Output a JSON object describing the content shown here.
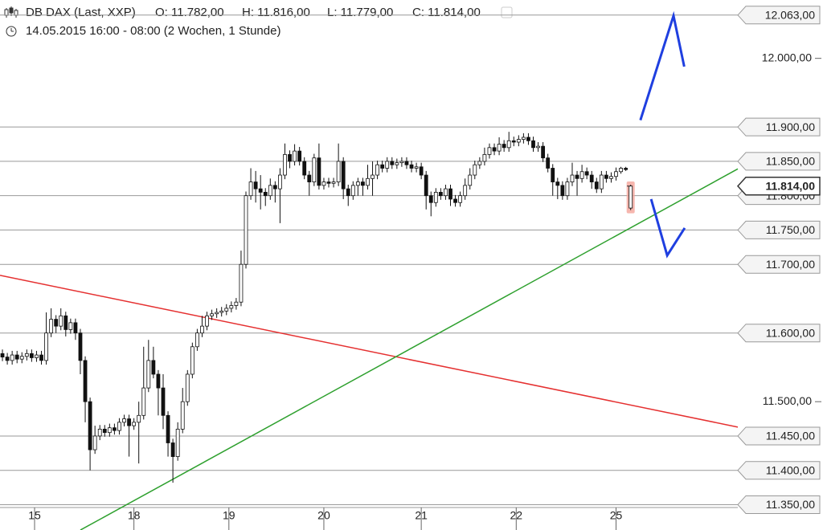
{
  "chart_data": {
    "type": "candlestick",
    "title": "DB DAX (Last, XXP)",
    "quote": [
      "O: 11.782,00",
      "H: 11.816,00",
      "L: 11.779,00",
      "C: 11.814,00"
    ],
    "subtitle": "14.05.2015 16:00 - 08:00 (2 Wochen, 1 Stunde)",
    "xlim": [
      -0.5,
      151
    ],
    "ylim": [
      11340,
      12085
    ],
    "xticks": [
      {
        "value": 6.6,
        "label": "15"
      },
      {
        "value": 27,
        "label": "18"
      },
      {
        "value": 46.5,
        "label": "19"
      },
      {
        "value": 66,
        "label": "20"
      },
      {
        "value": 86,
        "label": "21"
      },
      {
        "value": 105.5,
        "label": "22"
      },
      {
        "value": 126,
        "label": "25"
      }
    ],
    "yticks": [
      {
        "value": 12000,
        "label": "12.000,00"
      },
      {
        "value": 11500,
        "label": "11.500,00"
      }
    ],
    "price_lines": [
      {
        "value": 12063,
        "label": "12.063,00"
      },
      {
        "value": 11900,
        "label": "11.900,00"
      },
      {
        "value": 11850,
        "label": "11.850,00"
      },
      {
        "value": 11800,
        "label": "11.800,00"
      },
      {
        "value": 11750,
        "label": "11.750,00"
      },
      {
        "value": 11700,
        "label": "11.700,00"
      },
      {
        "value": 11600,
        "label": "11.600,00"
      },
      {
        "value": 11450,
        "label": "11.450,00"
      },
      {
        "value": 11400,
        "label": "11.400,00"
      },
      {
        "value": 11350,
        "label": "11.350,00"
      }
    ],
    "last_price": {
      "value": 11814,
      "label": "11.814,00"
    },
    "trendlines": [
      {
        "color": "#e53030",
        "points": [
          [
            -0.5,
            11684
          ],
          [
            151,
            11463
          ]
        ]
      },
      {
        "color": "#2ea02e",
        "points": [
          [
            16,
            11313
          ],
          [
            151,
            11839
          ]
        ]
      },
      {
        "color": "#1f3fe0",
        "points": [
          [
            131,
            11910
          ],
          [
            137.8,
            12062
          ],
          [
            140,
            11988
          ]
        ]
      },
      {
        "color": "#1f3fe0",
        "points": [
          [
            133.2,
            11795
          ],
          [
            136.5,
            11713
          ],
          [
            140.1,
            11753
          ]
        ]
      }
    ],
    "ohlc": [
      [
        11570,
        11576,
        11559,
        11565
      ],
      [
        11565,
        11571,
        11554,
        11560
      ],
      [
        11560,
        11574,
        11554,
        11568
      ],
      [
        11568,
        11574,
        11556,
        11562
      ],
      [
        11562,
        11572,
        11556,
        11566
      ],
      [
        11566,
        11576,
        11560,
        11570
      ],
      [
        11570,
        11576,
        11558,
        11564
      ],
      [
        11564,
        11574,
        11558,
        11568
      ],
      [
        11568,
        11574,
        11554,
        11560
      ],
      [
        11560,
        11630,
        11554,
        11600
      ],
      [
        11600,
        11636,
        11594,
        11620
      ],
      [
        11620,
        11626,
        11600,
        11610
      ],
      [
        11610,
        11636,
        11604,
        11625
      ],
      [
        11625,
        11631,
        11595,
        11605
      ],
      [
        11605,
        11621,
        11599,
        11615
      ],
      [
        11615,
        11621,
        11590,
        11600
      ],
      [
        11600,
        11606,
        11540,
        11560
      ],
      [
        11560,
        11566,
        11470,
        11500
      ],
      [
        11500,
        11506,
        11400,
        11430
      ],
      [
        11430,
        11465,
        11424,
        11450
      ],
      [
        11450,
        11466,
        11444,
        11460
      ],
      [
        11460,
        11466,
        11449,
        11455
      ],
      [
        11455,
        11468,
        11449,
        11462
      ],
      [
        11462,
        11468,
        11452,
        11458
      ],
      [
        11458,
        11476,
        11452,
        11470
      ],
      [
        11470,
        11481,
        11464,
        11475
      ],
      [
        11475,
        11481,
        11420,
        11465
      ],
      [
        11465,
        11476,
        11459,
        11470
      ],
      [
        11470,
        11500,
        11410,
        11480
      ],
      [
        11480,
        11580,
        11474,
        11520
      ],
      [
        11520,
        11590,
        11514,
        11560
      ],
      [
        11560,
        11580,
        11534,
        11540
      ],
      [
        11540,
        11546,
        11480,
        11520
      ],
      [
        11520,
        11540,
        11460,
        11480
      ],
      [
        11480,
        11486,
        11420,
        11440
      ],
      [
        11440,
        11446,
        11382,
        11420
      ],
      [
        11420,
        11470,
        11414,
        11460
      ],
      [
        11460,
        11520,
        11454,
        11500
      ],
      [
        11500,
        11546,
        11494,
        11540
      ],
      [
        11540,
        11586,
        11534,
        11580
      ],
      [
        11580,
        11606,
        11574,
        11600
      ],
      [
        11600,
        11625,
        11594,
        11610
      ],
      [
        11610,
        11631,
        11604,
        11625
      ],
      [
        11625,
        11634,
        11619,
        11628
      ],
      [
        11628,
        11636,
        11622,
        11630
      ],
      [
        11630,
        11638,
        11624,
        11632
      ],
      [
        11632,
        11642,
        11626,
        11636
      ],
      [
        11636,
        11646,
        11630,
        11640
      ],
      [
        11640,
        11651,
        11634,
        11645
      ],
      [
        11645,
        11720,
        11639,
        11700
      ],
      [
        11700,
        11806,
        11694,
        11800
      ],
      [
        11800,
        11840,
        11794,
        11820
      ],
      [
        11820,
        11836,
        11790,
        11810
      ],
      [
        11810,
        11830,
        11780,
        11805
      ],
      [
        11805,
        11811,
        11785,
        11800
      ],
      [
        11800,
        11825,
        11794,
        11815
      ],
      [
        11815,
        11821,
        11790,
        11810
      ],
      [
        11810,
        11840,
        11760,
        11830
      ],
      [
        11830,
        11876,
        11824,
        11860
      ],
      [
        11860,
        11866,
        11840,
        11850
      ],
      [
        11850,
        11875,
        11844,
        11865
      ],
      [
        11865,
        11871,
        11844,
        11850
      ],
      [
        11850,
        11856,
        11824,
        11830
      ],
      [
        11830,
        11836,
        11800,
        11820
      ],
      [
        11820,
        11861,
        11814,
        11855
      ],
      [
        11855,
        11876,
        11809,
        11815
      ],
      [
        11815,
        11826,
        11809,
        11820
      ],
      [
        11820,
        11826,
        11812,
        11818
      ],
      [
        11818,
        11826,
        11812,
        11820
      ],
      [
        11820,
        11876,
        11814,
        11850
      ],
      [
        11850,
        11856,
        11795,
        11810
      ],
      [
        11810,
        11816,
        11785,
        11800
      ],
      [
        11800,
        11821,
        11794,
        11815
      ],
      [
        11815,
        11826,
        11800,
        11820
      ],
      [
        11820,
        11826,
        11800,
        11815
      ],
      [
        11815,
        11845,
        11809,
        11825
      ],
      [
        11825,
        11850,
        11800,
        11830
      ],
      [
        11830,
        11851,
        11824,
        11845
      ],
      [
        11845,
        11851,
        11834,
        11840
      ],
      [
        11840,
        11856,
        11834,
        11850
      ],
      [
        11850,
        11856,
        11839,
        11845
      ],
      [
        11845,
        11854,
        11839,
        11848
      ],
      [
        11848,
        11856,
        11842,
        11850
      ],
      [
        11850,
        11856,
        11839,
        11845
      ],
      [
        11845,
        11851,
        11834,
        11840
      ],
      [
        11840,
        11848,
        11834,
        11842
      ],
      [
        11842,
        11848,
        11824,
        11830
      ],
      [
        11830,
        11836,
        11780,
        11800
      ],
      [
        11800,
        11806,
        11770,
        11790
      ],
      [
        11790,
        11811,
        11784,
        11805
      ],
      [
        11805,
        11811,
        11794,
        11800
      ],
      [
        11800,
        11816,
        11794,
        11810
      ],
      [
        11810,
        11816,
        11785,
        11795
      ],
      [
        11795,
        11801,
        11784,
        11790
      ],
      [
        11790,
        11806,
        11784,
        11800
      ],
      [
        11800,
        11825,
        11794,
        11815
      ],
      [
        11815,
        11840,
        11809,
        11830
      ],
      [
        11830,
        11851,
        11824,
        11845
      ],
      [
        11845,
        11856,
        11839,
        11850
      ],
      [
        11850,
        11870,
        11844,
        11860
      ],
      [
        11860,
        11876,
        11854,
        11870
      ],
      [
        11870,
        11876,
        11859,
        11865
      ],
      [
        11865,
        11885,
        11859,
        11875
      ],
      [
        11875,
        11881,
        11864,
        11870
      ],
      [
        11870,
        11893,
        11864,
        11880
      ],
      [
        11880,
        11886,
        11872,
        11878
      ],
      [
        11878,
        11888,
        11872,
        11882
      ],
      [
        11882,
        11891,
        11876,
        11885
      ],
      [
        11885,
        11891,
        11874,
        11880
      ],
      [
        11880,
        11886,
        11864,
        11870
      ],
      [
        11870,
        11878,
        11864,
        11872
      ],
      [
        11872,
        11878,
        11849,
        11855
      ],
      [
        11855,
        11861,
        11834,
        11840
      ],
      [
        11840,
        11846,
        11800,
        11820
      ],
      [
        11820,
        11826,
        11795,
        11815
      ],
      [
        11815,
        11821,
        11794,
        11800
      ],
      [
        11800,
        11826,
        11794,
        11820
      ],
      [
        11820,
        11848,
        11814,
        11830
      ],
      [
        11830,
        11836,
        11800,
        11825
      ],
      [
        11825,
        11845,
        11819,
        11835
      ],
      [
        11835,
        11841,
        11824,
        11830
      ],
      [
        11830,
        11836,
        11810,
        11820
      ],
      [
        11820,
        11826,
        11804,
        11810
      ],
      [
        11810,
        11836,
        11804,
        11830
      ],
      [
        11830,
        11836,
        11819,
        11825
      ],
      [
        11825,
        11834,
        11819,
        11828
      ],
      [
        11828,
        11841,
        11822,
        11835
      ],
      [
        11835,
        11842,
        11832,
        11840
      ],
      [
        11840,
        11842,
        11836,
        11838
      ],
      [
        11782,
        11816,
        11779,
        11814
      ]
    ]
  }
}
